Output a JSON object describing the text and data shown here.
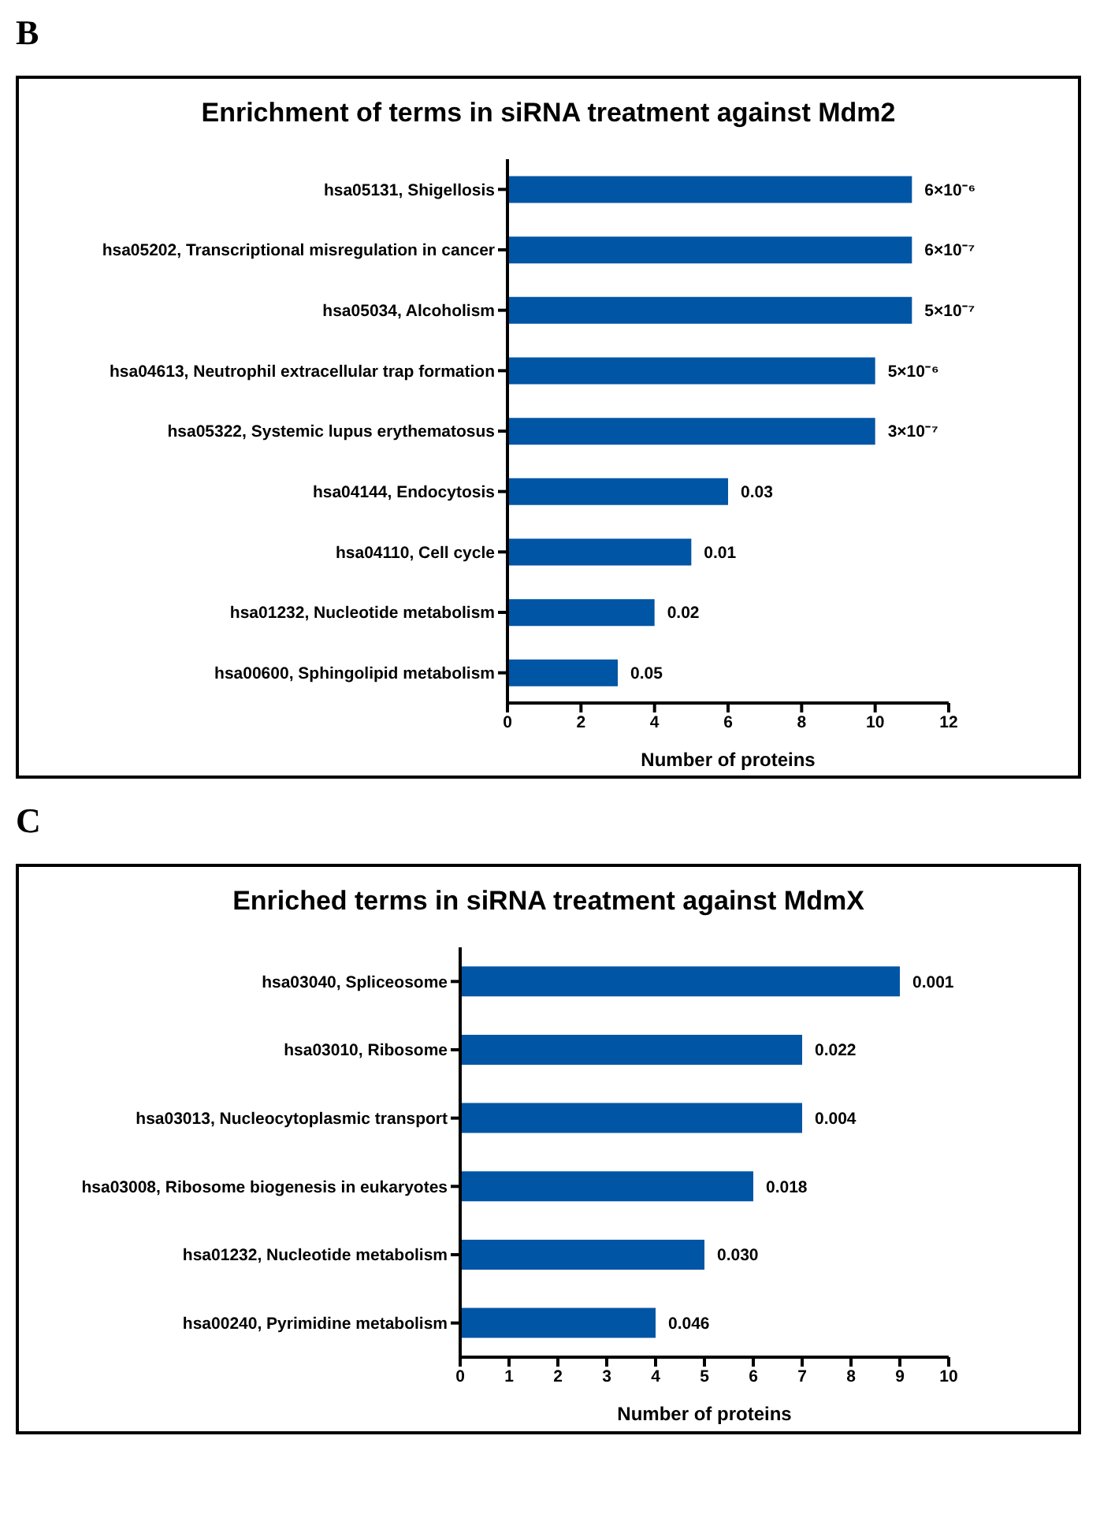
{
  "chart_data": [
    {
      "type": "bar",
      "orientation": "horizontal",
      "title": "Enrichment of terms in siRNA treatment against Mdm2",
      "xlabel": "Number of proteins",
      "categories": [
        "hsa05131, Shigellosis",
        "hsa05202, Transcriptional misregulation in cancer",
        "hsa05034, Alcoholism",
        "hsa04613, Neutrophil extracellular trap formation",
        "hsa05322, Systemic lupus erythematosus",
        "hsa04144, Endocytosis",
        "hsa04110, Cell cycle",
        "hsa01232, Nucleotide metabolism",
        "hsa00600, Sphingolipid metabolism"
      ],
      "values": [
        11,
        11,
        11,
        10,
        10,
        6,
        5,
        4,
        3
      ],
      "annotations": [
        "B",
        {
          "text": "6×10⁻⁶",
          "x": 11,
          "y": "hsa05131, Shigellosis"
        },
        {
          "text": "6×10⁻⁷",
          "x": 11,
          "y": "hsa05202, Transcriptional misregulation in cancer"
        },
        {
          "text": "5×10⁻⁷",
          "x": 11,
          "y": "hsa05034, Alcoholism"
        },
        {
          "text": "5×10⁻⁶",
          "x": 10,
          "y": "hsa04613, Neutrophil extracellular trap formation"
        },
        {
          "text": "3×10⁻⁷",
          "x": 10,
          "y": "hsa05322, Systemic lupus erythematosus"
        },
        {
          "text": "0.03",
          "x": 6,
          "y": "hsa04144, Endocytosis"
        },
        {
          "text": "0.01",
          "x": 5,
          "y": "hsa04110, Cell cycle"
        },
        {
          "text": "0.02",
          "x": 4,
          "y": "hsa01232, Nucleotide metabolism"
        },
        {
          "text": "0.05",
          "x": 3,
          "y": "hsa00600, Sphingolipid metabolism"
        }
      ],
      "color": "#0055a5",
      "xlim": [
        0,
        12
      ],
      "xticks": [
        0,
        2,
        4,
        6,
        8,
        10,
        12
      ],
      "grid": false,
      "legend": false
    },
    {
      "type": "bar",
      "orientation": "horizontal",
      "title": "Enriched terms in siRNA treatment against MdmX",
      "xlabel": "Number of proteins",
      "categories": [
        "hsa03040, Spliceosome",
        "hsa03010, Ribosome",
        "hsa03013, Nucleocytoplasmic transport",
        "hsa03008, Ribosome biogenesis in eukaryotes",
        "hsa01232, Nucleotide metabolism",
        "hsa00240, Pyrimidine metabolism"
      ],
      "values": [
        9,
        7,
        7,
        6,
        5,
        4
      ],
      "annotations": [
        "C",
        {
          "text": "0.001",
          "x": 9,
          "y": "hsa03040, Spliceosome"
        },
        {
          "text": "0.022",
          "x": 7,
          "y": "hsa03010, Ribosome"
        },
        {
          "text": "0.004",
          "x": 7,
          "y": "hsa03013, Nucleocytoplasmic transport"
        },
        {
          "text": "0.018",
          "x": 6,
          "y": "hsa03008, Ribosome biogenesis in eukaryotes"
        },
        {
          "text": "0.030",
          "x": 5,
          "y": "hsa01232, Nucleotide metabolism"
        },
        {
          "text": "0.046",
          "x": 4,
          "y": "hsa00240, Pyrimidine metabolism"
        }
      ],
      "color": "#0055a5",
      "xlim": [
        0,
        10
      ],
      "xticks": [
        0,
        1,
        2,
        3,
        4,
        5,
        6,
        7,
        8,
        9,
        10
      ],
      "grid": false,
      "legend": false
    }
  ]
}
